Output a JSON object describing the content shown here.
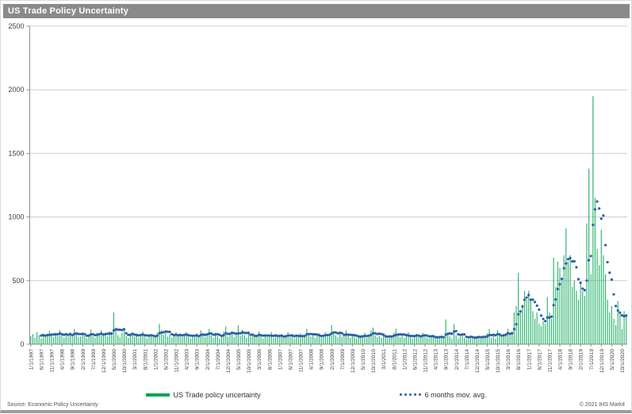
{
  "header": {
    "title": "US Trade Policy Uncertainty"
  },
  "legend": {
    "bars_label": "US Trade policy uncertainty",
    "ma_label": "6 months mov. avg."
  },
  "footer": {
    "source": "Source: Economic Policy Uncertainty",
    "copyright": "© 2021 IHS Markit"
  },
  "colors": {
    "title_bar_bg": "#8a8a8a",
    "title_text": "#ffffff",
    "grid_line": "#cdcdcd",
    "axis_line": "#8f8f8f",
    "bars_green": "#00a550",
    "ma_blue": "#2b5ea7"
  },
  "chart_data": {
    "type": "bar",
    "title": "US Trade Policy Uncertainty",
    "xlabel": "",
    "ylabel": "",
    "ylim": [
      0,
      2500
    ],
    "y_ticks": [
      0,
      500,
      1000,
      1500,
      2000,
      2500
    ],
    "grid": "horizontal",
    "legend_position": "bottom",
    "x_start": "1/1/1997",
    "x_frequency": "monthly",
    "x_tick_every": 5,
    "x_tick_labels": [
      "1/1/1997",
      "6/1/1997",
      "11/1/1997",
      "4/1/1998",
      "9/1/1998",
      "2/1/1999",
      "7/1/1999",
      "12/1/1999",
      "5/1/2000",
      "10/1/2000",
      "3/1/2001",
      "8/1/2001",
      "1/1/2002",
      "6/1/2002",
      "11/1/2002",
      "4/1/2003",
      "9/1/2003",
      "2/1/2004",
      "7/1/2004",
      "12/1/2004",
      "5/1/2005",
      "10/1/2005",
      "3/1/2006",
      "8/1/2006",
      "1/1/2007",
      "6/1/2007",
      "11/1/2007",
      "4/1/2008",
      "9/1/2008",
      "2/1/2009",
      "7/1/2009",
      "12/1/2009",
      "5/1/2010",
      "10/1/2010",
      "3/1/2011",
      "8/1/2011",
      "1/1/2012",
      "6/1/2012",
      "11/1/2012",
      "4/1/2013",
      "9/1/2013",
      "2/1/2014",
      "7/1/2014",
      "12/1/2014",
      "5/1/2015",
      "10/1/2015",
      "3/1/2016",
      "8/1/2016",
      "1/1/2017",
      "6/1/2017",
      "11/1/2017",
      "4/1/2018",
      "9/1/2018",
      "2/1/2019",
      "7/1/2019",
      "12/1/2019",
      "5/1/2020",
      "10/1/2020"
    ],
    "series": [
      {
        "name": "US Trade policy uncertainty",
        "type": "bar",
        "color": "#00a550",
        "values": [
          65,
          80,
          50,
          95,
          70,
          45,
          85,
          60,
          75,
          105,
          80,
          55,
          90,
          65,
          110,
          75,
          50,
          85,
          60,
          95,
          70,
          120,
          80,
          55,
          60,
          95,
          70,
          45,
          80,
          115,
          65,
          50,
          90,
          70,
          110,
          75,
          85,
          60,
          100,
          75,
          250,
          130,
          70,
          55,
          90,
          110,
          65,
          50,
          75,
          95,
          60,
          85,
          50,
          70,
          100,
          60,
          45,
          80,
          65,
          55,
          70,
          90,
          160,
          110,
          75,
          95,
          60,
          80,
          50,
          70,
          95,
          65,
          80,
          55,
          70,
          95,
          60,
          45,
          75,
          55,
          85,
          65,
          110,
          70,
          55,
          80,
          120,
          70,
          50,
          90,
          65,
          45,
          75,
          100,
          140,
          60,
          70,
          95,
          55,
          80,
          150,
          65,
          115,
          70,
          50,
          85,
          60,
          75,
          55,
          70,
          100,
          60,
          45,
          80,
          55,
          70,
          95,
          50,
          65,
          55,
          60,
          80,
          50,
          70,
          95,
          55,
          65,
          45,
          75,
          60,
          85,
          55,
          70,
          120,
          90,
          60,
          75,
          50,
          65,
          85,
          55,
          70,
          95,
          60,
          80,
          150,
          100,
          70,
          55,
          85,
          60,
          75,
          110,
          65,
          50,
          70,
          60,
          45,
          75,
          55,
          70,
          90,
          50,
          65,
          110,
          130,
          70,
          55,
          65,
          50,
          80,
          60,
          45,
          70,
          55,
          90,
          120,
          75,
          55,
          65,
          50,
          70,
          95,
          60,
          45,
          65,
          80,
          55,
          70,
          90,
          60,
          50,
          45,
          60,
          75,
          50,
          40,
          65,
          55,
          45,
          195,
          90,
          60,
          45,
          160,
          70,
          45,
          60,
          80,
          50,
          40,
          55,
          65,
          45,
          55,
          60,
          60,
          45,
          70,
          55,
          85,
          120,
          50,
          65,
          45,
          110,
          75,
          55,
          70,
          90,
          120,
          80,
          100,
          250,
          300,
          560,
          260,
          310,
          420,
          350,
          420,
          340,
          260,
          200,
          250,
          160,
          140,
          180,
          160,
          370,
          250,
          200,
          680,
          450,
          650,
          600,
          500,
          700,
          910,
          650,
          700,
          450,
          500,
          420,
          350,
          480,
          420,
          380,
          950,
          1380,
          550,
          1950,
          1150,
          750,
          620,
          900,
          700,
          550,
          350,
          250,
          300,
          200,
          150,
          340,
          250,
          120,
          260,
          230
        ]
      },
      {
        "name": "6 months mov. avg.",
        "type": "dotted-line",
        "color": "#2b5ea7",
        "derived": "trailing moving average of bar series",
        "window": 6
      }
    ]
  }
}
